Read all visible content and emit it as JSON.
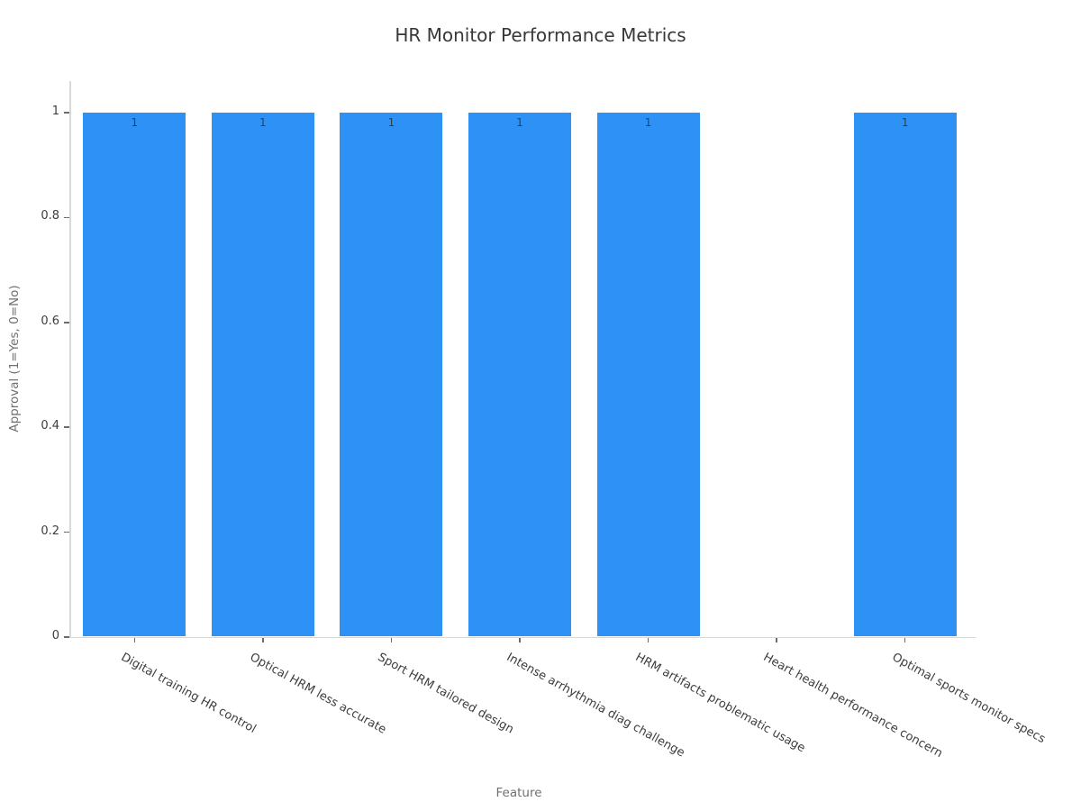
{
  "chart_data": {
    "type": "bar",
    "title": "HR Monitor Performance Metrics",
    "xlabel": "Feature",
    "ylabel": "Approval (1=Yes, 0=No)",
    "categories": [
      "Digital training HR control",
      "Optical HRM less accurate",
      "Sport HRM tailored design",
      "Intense arrhythmia diag challenge",
      "HRM artifacts problematic usage",
      "Heart health performance concern",
      "Optimal sports monitor specs"
    ],
    "values": [
      1,
      1,
      1,
      1,
      1,
      0,
      1
    ],
    "bar_value_labels": [
      "1",
      "1",
      "1",
      "1",
      "1",
      "",
      "1"
    ],
    "ytick_labels": [
      "0",
      "0.2",
      "0.4",
      "0.6",
      "0.8",
      "1"
    ],
    "ytick_values": [
      0,
      0.2,
      0.4,
      0.6,
      0.8,
      1
    ],
    "ylim": [
      0,
      1.06
    ],
    "grid": false,
    "colors": {
      "bar": "#2E91F5",
      "title": "#383838",
      "tick_label": "#3d3d3d",
      "axis_label": "#707070",
      "spine": "#d9d9d9",
      "bar_value_label": "#31414E"
    }
  }
}
